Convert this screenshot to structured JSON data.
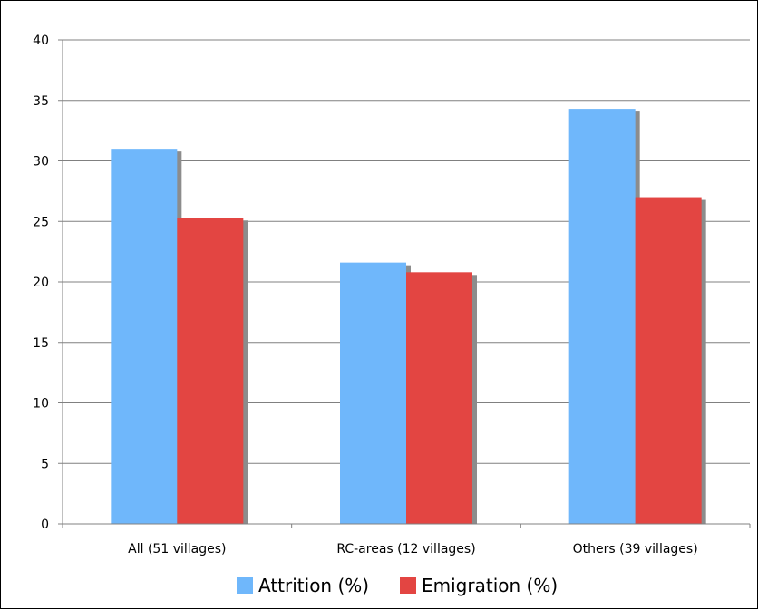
{
  "chart_data": {
    "type": "bar",
    "categories": [
      "All (51 villages)",
      "RC-areas (12 villages)",
      "Others (39 villages)"
    ],
    "series": [
      {
        "name": "Attrition (%)",
        "values": [
          31.0,
          21.6,
          34.3
        ],
        "color": "#6fb7fb"
      },
      {
        "name": "Emigration (%)",
        "values": [
          25.3,
          20.8,
          27.0
        ],
        "color": "#e34542"
      }
    ],
    "ylim": [
      0,
      40
    ],
    "yticks": [
      "0",
      "5",
      "10",
      "15",
      "20",
      "25",
      "30",
      "35",
      "40"
    ],
    "grid": true,
    "legend_position": "bottom-center",
    "shadow_color": "#8c8c8c"
  }
}
